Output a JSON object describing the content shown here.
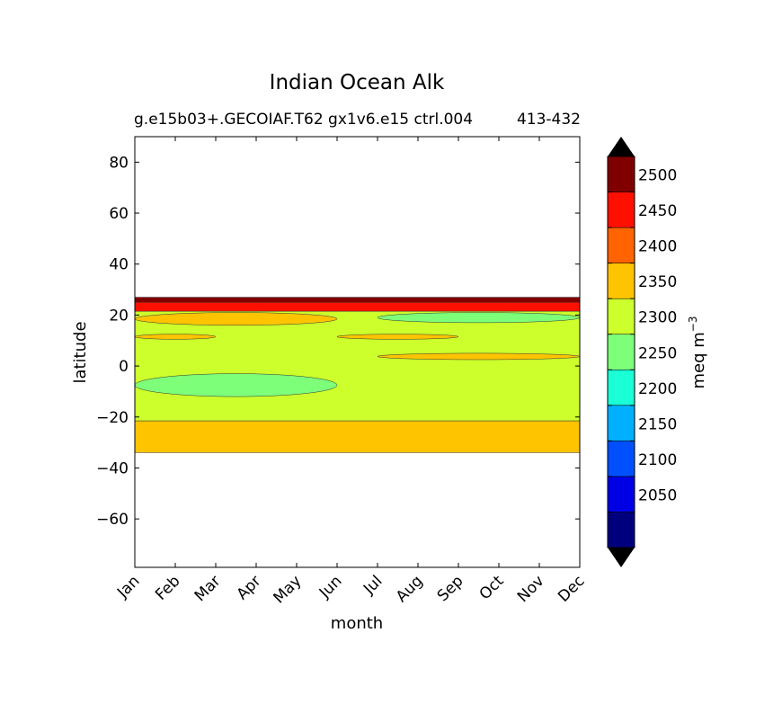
{
  "chart_data": {
    "type": "heatmap",
    "title": "Indian Ocean Alk",
    "subtitle_left": "g.e15b03+.GECOIAF.T62 gx1v6.e15 ctrl.004",
    "subtitle_right": "413-432",
    "xlabel": "month",
    "ylabel": "latitude",
    "x_categories": [
      "Jan",
      "Feb",
      "Mar",
      "Apr",
      "May",
      "Jun",
      "Jul",
      "Aug",
      "Sep",
      "Oct",
      "Nov",
      "Dec"
    ],
    "ylim": [
      -79,
      90
    ],
    "yticks": [
      80,
      60,
      40,
      20,
      0,
      -20,
      -40,
      -60
    ],
    "yticklabels": [
      "80",
      "60",
      "40",
      "20",
      "0",
      "−20",
      "−40",
      "−60"
    ],
    "colorbar": {
      "label": "meq m",
      "label_exp": "−3",
      "levels": [
        2000,
        2050,
        2100,
        2150,
        2200,
        2250,
        2300,
        2350,
        2400,
        2450,
        2500,
        2550
      ],
      "tick_labels": [
        "2050",
        "2100",
        "2150",
        "2200",
        "2250",
        "2300",
        "2350",
        "2400",
        "2450",
        "2500"
      ],
      "colors": [
        "#00007f",
        "#0000e5",
        "#0050ff",
        "#00b0ff",
        "#1affd6",
        "#7dff7a",
        "#ccff2b",
        "#ffc400",
        "#ff6400",
        "#fe1000",
        "#800000"
      ],
      "extend": "both",
      "under_color": "#000000",
      "over_color": "#000000"
    },
    "bands": [
      {
        "lat_min": -34,
        "lat_max": -21.5,
        "range": "2350-2400",
        "color": "#ffc400"
      },
      {
        "lat_min": -21.5,
        "lat_max": 21.5,
        "range": "2300-2350",
        "color": "#ccff2b"
      },
      {
        "lat_min": 21.5,
        "lat_max": 25,
        "range": "2450-2500",
        "color": "#fe1000"
      },
      {
        "lat_min": 25,
        "lat_max": 27,
        "range": "2500-2550",
        "color": "#800000"
      }
    ],
    "patches": [
      {
        "range": "2250-2300",
        "color": "#7dff7a",
        "month_span": [
          0,
          5
        ],
        "lat_span": [
          -12,
          -3
        ]
      },
      {
        "range": "2250-2300",
        "color": "#7dff7a",
        "month_span": [
          6,
          11
        ],
        "lat_span": [
          17,
          21
        ]
      },
      {
        "range": "2350-2400",
        "color": "#ffc400",
        "month_span": [
          0,
          5
        ],
        "lat_span": [
          16,
          21
        ]
      },
      {
        "range": "2350-2400",
        "color": "#ffc400",
        "month_span": [
          0,
          2
        ],
        "lat_span": [
          10.5,
          12.5
        ]
      },
      {
        "range": "2350-2400",
        "color": "#ffc400",
        "month_span": [
          5,
          8
        ],
        "lat_span": [
          10.5,
          12.5
        ]
      },
      {
        "range": "2350-2400",
        "color": "#ffc400",
        "month_span": [
          6,
          11
        ],
        "lat_span": [
          2.5,
          5
        ]
      }
    ]
  }
}
